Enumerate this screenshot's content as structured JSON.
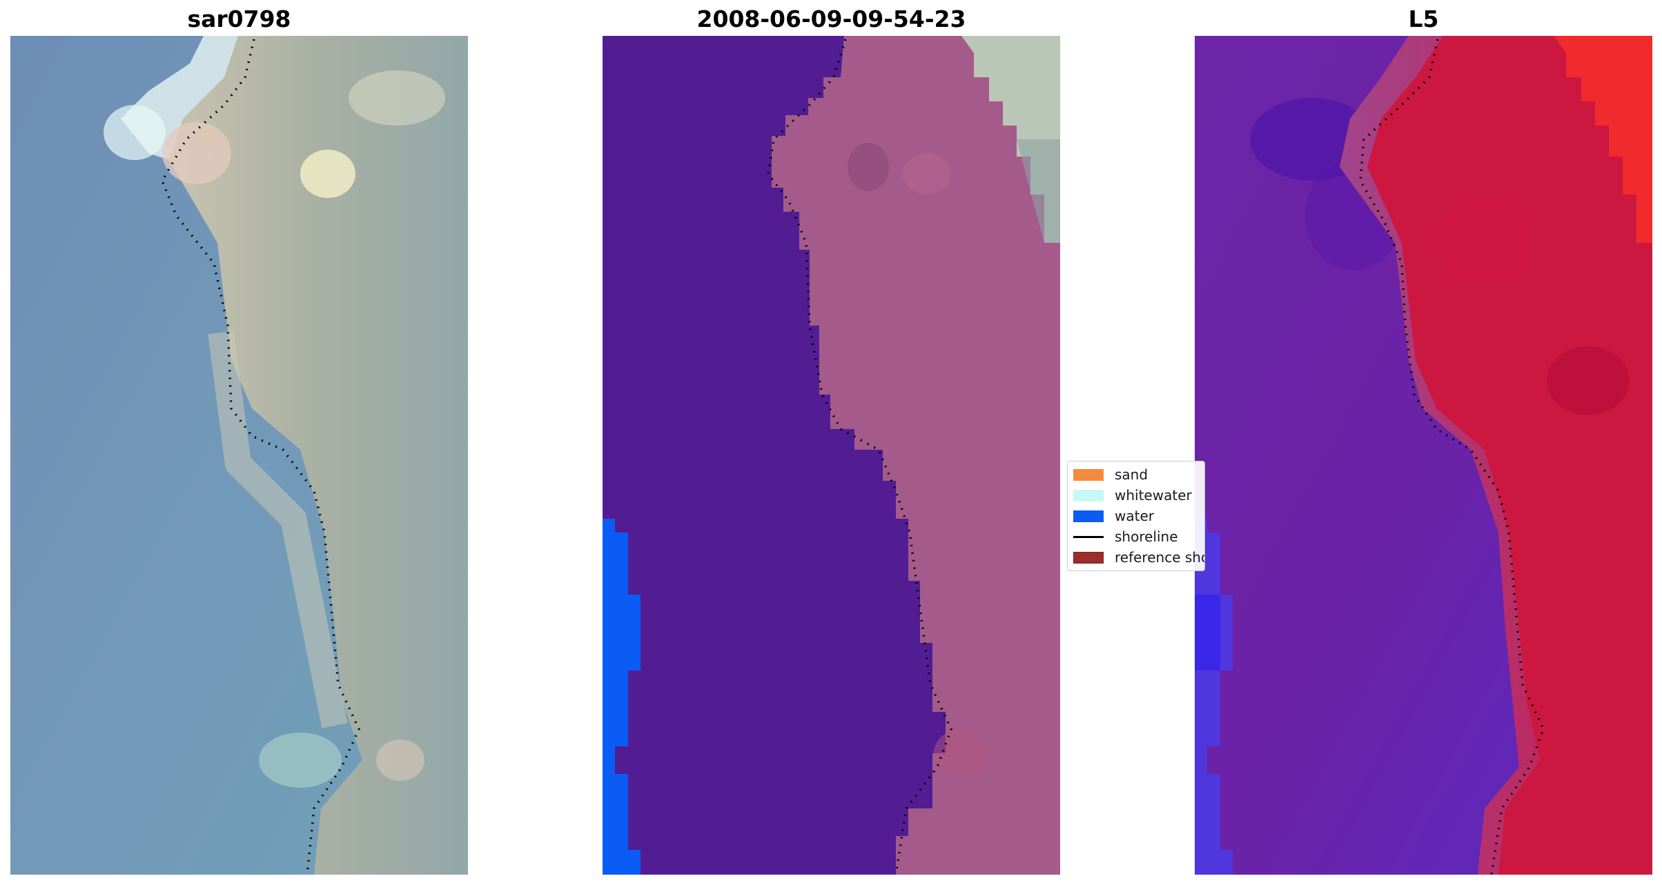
{
  "titles": {
    "rgb": "sar0798",
    "classification": "2008-06-09-09-54-23",
    "index": "L5"
  },
  "legend": {
    "items": [
      {
        "label": "sand",
        "kind": "patch",
        "color": "#f58a3c"
      },
      {
        "label": "whitewater",
        "kind": "patch",
        "color": "#c8f8f8"
      },
      {
        "label": "water",
        "kind": "patch",
        "color": "#0a5cf5"
      },
      {
        "label": "shoreline",
        "kind": "line",
        "color": "#000000"
      },
      {
        "label": "reference shoreline",
        "kind": "patch",
        "color": "#9b2d2d"
      }
    ]
  },
  "colors": {
    "land_class": "#a45b8b",
    "water_class": "#521d93",
    "water_open": "#0a5cf5",
    "index_land": "#cc1840",
    "index_water": "#6a1ea5",
    "rgb_water": "#6e8fb4",
    "rgb_land": "#b9baa5"
  }
}
